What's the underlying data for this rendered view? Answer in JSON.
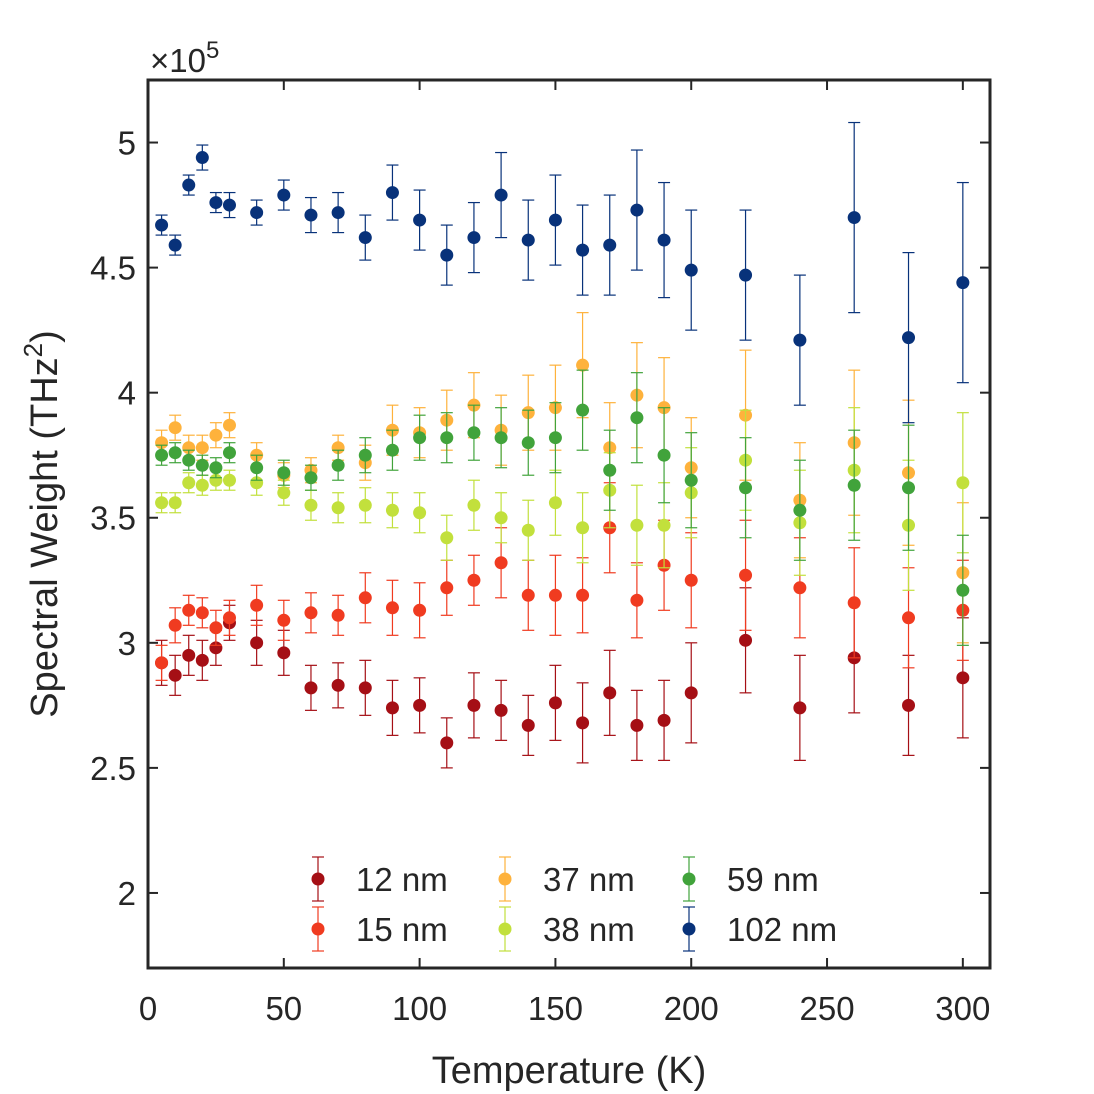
{
  "chart_data": {
    "type": "scatter",
    "title": "",
    "xlabel": "Temperature (K)",
    "ylabel_main": "Spectral Weight (THz",
    "ylabel_sup": "2",
    "ylabel_close": ")",
    "y_scale_prefix": "×10",
    "y_scale_exp": "5",
    "xlim": [
      0,
      310
    ],
    "ylim": [
      1.7,
      5.25
    ],
    "xticks": [
      0,
      50,
      100,
      150,
      200,
      250,
      300
    ],
    "xtick_labels": [
      "0",
      "50",
      "100",
      "150",
      "200",
      "250",
      "300"
    ],
    "yticks": [
      2,
      2.5,
      3,
      3.5,
      4,
      4.5,
      5
    ],
    "ytick_labels": [
      "2",
      "2.5",
      "3",
      "3.5",
      "4",
      "4.5",
      "5"
    ],
    "grid": false,
    "legend_position": "bottom-center",
    "series": [
      {
        "name": "12 nm",
        "color": "#a50f15",
        "x": [
          5,
          10,
          15,
          20,
          25,
          30,
          40,
          50,
          60,
          70,
          80,
          90,
          100,
          110,
          120,
          130,
          140,
          150,
          160,
          170,
          180,
          190,
          200,
          220,
          240,
          260,
          280,
          300
        ],
        "y": [
          2.92,
          2.87,
          2.95,
          2.93,
          2.98,
          3.08,
          3.0,
          2.96,
          2.82,
          2.83,
          2.82,
          2.74,
          2.75,
          2.6,
          2.75,
          2.73,
          2.67,
          2.76,
          2.68,
          2.8,
          2.67,
          2.69,
          2.8,
          3.01,
          2.74,
          2.94,
          2.75,
          2.86
        ],
        "err": [
          0.09,
          0.08,
          0.08,
          0.08,
          0.07,
          0.07,
          0.09,
          0.09,
          0.09,
          0.09,
          0.11,
          0.11,
          0.11,
          0.1,
          0.13,
          0.12,
          0.12,
          0.15,
          0.16,
          0.17,
          0.14,
          0.16,
          0.2,
          0.21,
          0.21,
          0.22,
          0.2,
          0.24
        ]
      },
      {
        "name": "15 nm",
        "color": "#f03b20",
        "x": [
          5,
          10,
          15,
          20,
          25,
          30,
          40,
          50,
          60,
          70,
          80,
          90,
          100,
          110,
          120,
          130,
          140,
          150,
          160,
          170,
          180,
          190,
          200,
          220,
          240,
          260,
          280,
          300
        ],
        "y": [
          2.92,
          3.07,
          3.13,
          3.12,
          3.06,
          3.1,
          3.15,
          3.09,
          3.12,
          3.11,
          3.18,
          3.14,
          3.13,
          3.22,
          3.25,
          3.32,
          3.19,
          3.19,
          3.19,
          3.46,
          3.17,
          3.31,
          3.25,
          3.27,
          3.22,
          3.16,
          3.1,
          3.13
        ],
        "err": [
          0.07,
          0.07,
          0.06,
          0.06,
          0.07,
          0.07,
          0.08,
          0.08,
          0.08,
          0.08,
          0.1,
          0.11,
          0.11,
          0.11,
          0.1,
          0.14,
          0.14,
          0.16,
          0.15,
          0.18,
          0.15,
          0.18,
          0.19,
          0.22,
          0.2,
          0.22,
          0.2,
          0.2
        ]
      },
      {
        "name": "37 nm",
        "color": "#feb23c",
        "x": [
          5,
          10,
          15,
          20,
          25,
          30,
          40,
          50,
          60,
          70,
          80,
          90,
          100,
          110,
          120,
          130,
          140,
          150,
          160,
          170,
          180,
          190,
          200,
          220,
          240,
          260,
          280,
          300
        ],
        "y": [
          3.8,
          3.86,
          3.78,
          3.78,
          3.83,
          3.87,
          3.75,
          3.67,
          3.69,
          3.78,
          3.72,
          3.85,
          3.84,
          3.89,
          3.95,
          3.85,
          3.92,
          3.94,
          4.11,
          3.78,
          3.99,
          3.94,
          3.7,
          3.91,
          3.57,
          3.8,
          3.68,
          3.28
        ],
        "err": [
          0.05,
          0.05,
          0.05,
          0.05,
          0.05,
          0.05,
          0.05,
          0.05,
          0.05,
          0.05,
          0.07,
          0.1,
          0.1,
          0.12,
          0.13,
          0.14,
          0.15,
          0.17,
          0.21,
          0.18,
          0.21,
          0.2,
          0.2,
          0.26,
          0.23,
          0.29,
          0.29,
          0.28
        ]
      },
      {
        "name": "38 nm",
        "color": "#c2e03c",
        "x": [
          5,
          10,
          15,
          20,
          25,
          30,
          40,
          50,
          60,
          70,
          80,
          90,
          100,
          110,
          120,
          130,
          140,
          150,
          160,
          170,
          180,
          190,
          200,
          220,
          240,
          260,
          280,
          300
        ],
        "y": [
          3.56,
          3.56,
          3.64,
          3.63,
          3.65,
          3.65,
          3.64,
          3.6,
          3.55,
          3.54,
          3.55,
          3.53,
          3.52,
          3.42,
          3.55,
          3.5,
          3.45,
          3.56,
          3.46,
          3.61,
          3.47,
          3.47,
          3.6,
          3.73,
          3.48,
          3.69,
          3.47,
          3.64
        ],
        "err": [
          0.04,
          0.04,
          0.04,
          0.04,
          0.04,
          0.04,
          0.05,
          0.05,
          0.06,
          0.06,
          0.07,
          0.07,
          0.08,
          0.09,
          0.1,
          0.1,
          0.12,
          0.13,
          0.14,
          0.15,
          0.16,
          0.17,
          0.18,
          0.2,
          0.21,
          0.25,
          0.26,
          0.28
        ]
      },
      {
        "name": "59 nm",
        "color": "#41a33b",
        "x": [
          5,
          10,
          15,
          20,
          25,
          30,
          40,
          50,
          60,
          70,
          80,
          90,
          100,
          110,
          120,
          130,
          140,
          150,
          160,
          170,
          180,
          190,
          200,
          220,
          240,
          260,
          280,
          300
        ],
        "y": [
          3.75,
          3.76,
          3.73,
          3.71,
          3.7,
          3.76,
          3.7,
          3.68,
          3.66,
          3.71,
          3.75,
          3.77,
          3.82,
          3.82,
          3.84,
          3.82,
          3.8,
          3.82,
          3.93,
          3.69,
          3.9,
          3.75,
          3.65,
          3.62,
          3.53,
          3.63,
          3.62,
          3.21
        ],
        "err": [
          0.04,
          0.04,
          0.04,
          0.04,
          0.04,
          0.04,
          0.05,
          0.05,
          0.05,
          0.06,
          0.07,
          0.08,
          0.09,
          0.1,
          0.11,
          0.12,
          0.13,
          0.14,
          0.16,
          0.16,
          0.18,
          0.19,
          0.19,
          0.2,
          0.2,
          0.22,
          0.25,
          0.22
        ]
      },
      {
        "name": "102 nm",
        "color": "#08327a",
        "x": [
          5,
          10,
          15,
          20,
          25,
          30,
          40,
          50,
          60,
          70,
          80,
          90,
          100,
          110,
          120,
          130,
          140,
          150,
          160,
          170,
          180,
          190,
          200,
          220,
          240,
          260,
          280,
          300
        ],
        "y": [
          4.67,
          4.59,
          4.83,
          4.94,
          4.76,
          4.75,
          4.72,
          4.79,
          4.71,
          4.72,
          4.62,
          4.8,
          4.69,
          4.55,
          4.62,
          4.79,
          4.61,
          4.69,
          4.57,
          4.59,
          4.73,
          4.61,
          4.49,
          4.47,
          4.21,
          4.7,
          4.22,
          4.44
        ],
        "err": [
          0.04,
          0.04,
          0.04,
          0.05,
          0.04,
          0.05,
          0.05,
          0.06,
          0.07,
          0.08,
          0.09,
          0.11,
          0.12,
          0.12,
          0.14,
          0.17,
          0.16,
          0.18,
          0.18,
          0.2,
          0.24,
          0.23,
          0.24,
          0.26,
          0.26,
          0.38,
          0.34,
          0.4
        ]
      }
    ]
  }
}
